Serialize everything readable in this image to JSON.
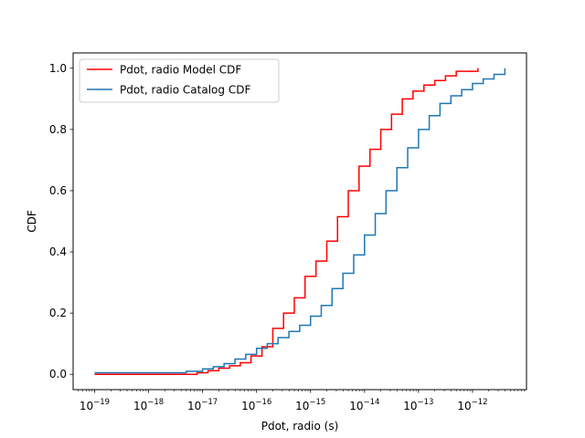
{
  "chart_data": {
    "type": "line",
    "xlabel": "Pdot, radio (s)",
    "ylabel": "CDF",
    "xscale": "log",
    "xlim": [
      4e-20,
      1e-11
    ],
    "ylim": [
      -0.05,
      1.05
    ],
    "grid": false,
    "legend_position": "top-left",
    "x_ticks": [
      {
        "value": 1e-19,
        "base": "10",
        "exp": "−19"
      },
      {
        "value": 1e-18,
        "base": "10",
        "exp": "−18"
      },
      {
        "value": 1e-17,
        "base": "10",
        "exp": "−17"
      },
      {
        "value": 1e-16,
        "base": "10",
        "exp": "−16"
      },
      {
        "value": 1e-15,
        "base": "10",
        "exp": "−15"
      },
      {
        "value": 1e-14,
        "base": "10",
        "exp": "−14"
      },
      {
        "value": 1e-13,
        "base": "10",
        "exp": "−13"
      },
      {
        "value": 1e-12,
        "base": "10",
        "exp": "−12"
      }
    ],
    "y_ticks": [
      {
        "value": 0.0,
        "label": "0.0"
      },
      {
        "value": 0.2,
        "label": "0.2"
      },
      {
        "value": 0.4,
        "label": "0.4"
      },
      {
        "value": 0.6,
        "label": "0.6"
      },
      {
        "value": 0.8,
        "label": "0.8"
      },
      {
        "value": 1.0,
        "label": "1.0"
      }
    ],
    "series": [
      {
        "name": "Pdot, radio Model CDF",
        "color": "#ff0000",
        "step": "post",
        "x": [
          1e-19,
          7.9e-18,
          1.26e-17,
          2e-17,
          3.16e-17,
          5e-17,
          7.9e-17,
          1.26e-16,
          2e-16,
          3.16e-16,
          5e-16,
          7.9e-16,
          1.26e-15,
          2e-15,
          3.16e-15,
          5e-15,
          7.9e-15,
          1.26e-14,
          2e-14,
          3.16e-14,
          5e-14,
          7.9e-14,
          1.26e-13,
          2e-13,
          3.16e-13,
          5e-13,
          1.26e-12
        ],
        "y": [
          0.0,
          0.005,
          0.012,
          0.02,
          0.028,
          0.038,
          0.06,
          0.09,
          0.15,
          0.2,
          0.25,
          0.32,
          0.37,
          0.435,
          0.515,
          0.6,
          0.68,
          0.735,
          0.8,
          0.85,
          0.9,
          0.925,
          0.945,
          0.96,
          0.975,
          0.99,
          1.0
        ]
      },
      {
        "name": "Pdot, radio Catalog CDF",
        "color": "#1f77b4",
        "step": "post",
        "x": [
          1e-19,
          5e-18,
          1e-17,
          1.58e-17,
          2.5e-17,
          3.98e-17,
          6.3e-17,
          1e-16,
          1.58e-16,
          2.5e-16,
          3.98e-16,
          6.3e-16,
          1e-15,
          1.58e-15,
          2.5e-15,
          3.98e-15,
          6.3e-15,
          1e-14,
          1.58e-14,
          2.5e-14,
          3.98e-14,
          6.3e-14,
          1e-13,
          1.58e-13,
          2.5e-13,
          3.98e-13,
          6.3e-13,
          1e-12,
          1.58e-12,
          2.5e-12,
          3.98e-12
        ],
        "y": [
          0.005,
          0.01,
          0.018,
          0.025,
          0.035,
          0.05,
          0.065,
          0.085,
          0.1,
          0.12,
          0.14,
          0.16,
          0.19,
          0.225,
          0.28,
          0.33,
          0.39,
          0.455,
          0.525,
          0.6,
          0.675,
          0.74,
          0.8,
          0.845,
          0.885,
          0.91,
          0.93,
          0.95,
          0.965,
          0.98,
          1.0
        ]
      }
    ]
  }
}
